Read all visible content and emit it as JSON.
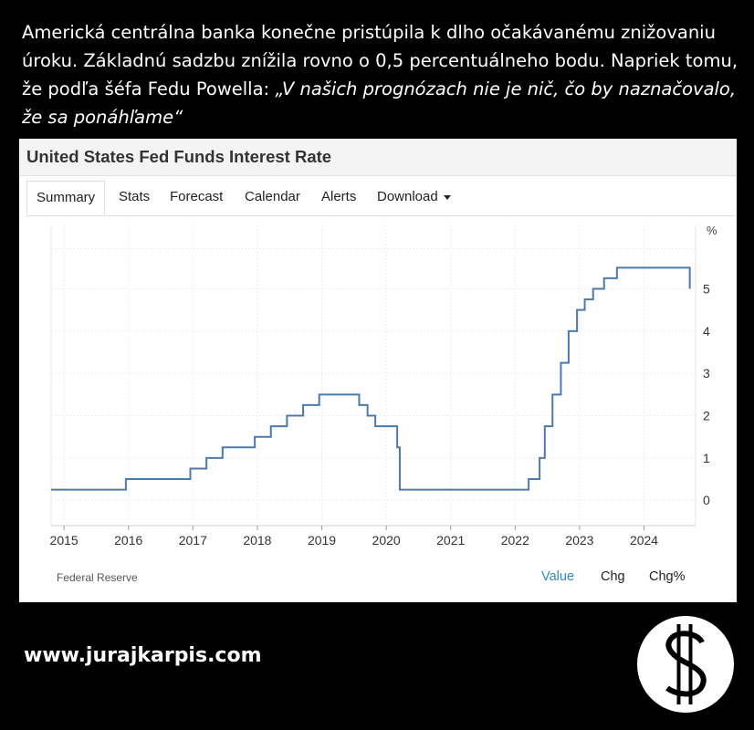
{
  "headline": {
    "text_plain": "Americká centrálna banka konečne pristúpila k dlho očakávanému znižovaniu úroku. Základnú sadzbu znížila rovno o 0,5 percentuálneho bodu. Napriek tomu, že podľa šéfa Fedu Powella: ",
    "text_quote": "„V našich prognózach nie je nič, čo by naznačovalo, že sa ponáhľame“"
  },
  "card": {
    "title": "United States Fed Funds Interest Rate",
    "tabs": [
      "Summary",
      "Stats",
      "Forecast",
      "Calendar",
      "Alerts",
      "Download"
    ],
    "active_tab": "Summary",
    "source": "Federal Reserve",
    "footer_tabs": [
      "Value",
      "Chg",
      "Chg%"
    ],
    "selected_footer_tab": "Value"
  },
  "chart_data": {
    "type": "line",
    "step": true,
    "unit_label": "%",
    "line_color": "#4a7ab3",
    "x_ticks": [
      "2015",
      "2016",
      "2017",
      "2018",
      "2019",
      "2020",
      "2021",
      "2022",
      "2023",
      "2024"
    ],
    "y_ticks": [
      "0",
      "1",
      "2",
      "3",
      "4",
      "5"
    ],
    "xlim": [
      2014.8,
      2024.8
    ],
    "ylim": [
      -0.6,
      6.5
    ],
    "grid": true,
    "points": [
      [
        2014.8,
        0.25
      ],
      [
        2015.96,
        0.5
      ],
      [
        2016.96,
        0.75
      ],
      [
        2017.21,
        1.0
      ],
      [
        2017.46,
        1.25
      ],
      [
        2017.96,
        1.5
      ],
      [
        2018.21,
        1.75
      ],
      [
        2018.46,
        2.0
      ],
      [
        2018.71,
        2.25
      ],
      [
        2018.96,
        2.5
      ],
      [
        2019.58,
        2.25
      ],
      [
        2019.71,
        2.0
      ],
      [
        2019.83,
        1.75
      ],
      [
        2020.17,
        1.25
      ],
      [
        2020.21,
        0.25
      ],
      [
        2022.21,
        0.5
      ],
      [
        2022.38,
        1.0
      ],
      [
        2022.46,
        1.75
      ],
      [
        2022.58,
        2.5
      ],
      [
        2022.71,
        3.25
      ],
      [
        2022.83,
        4.0
      ],
      [
        2022.96,
        4.5
      ],
      [
        2023.08,
        4.75
      ],
      [
        2023.21,
        5.0
      ],
      [
        2023.38,
        5.25
      ],
      [
        2023.58,
        5.5
      ],
      [
        2024.71,
        5.0
      ]
    ]
  },
  "website": "www.jurajkarpis.com"
}
